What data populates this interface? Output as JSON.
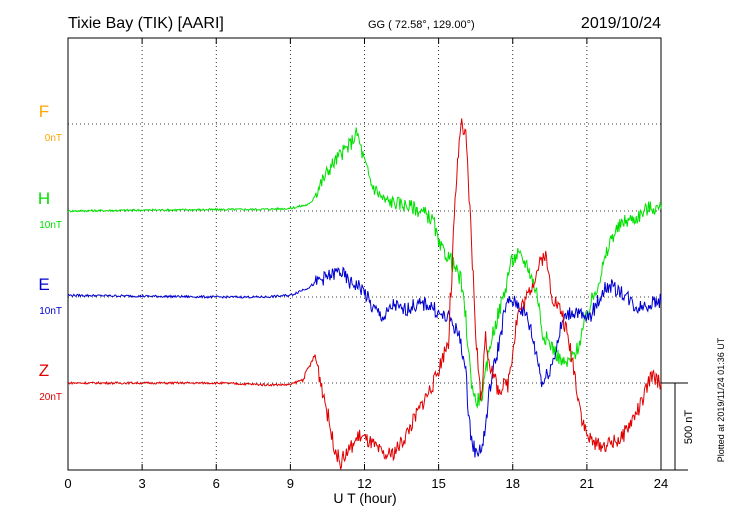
{
  "header": {
    "station": "Tixie Bay (TIK)  [AARI]",
    "coords": "GG ( 72.58°, 129.00°)",
    "date": "2019/10/24"
  },
  "side_note": "Plotted at 2019/11/24 01:36 UT",
  "colors": {
    "F": "#ffa500",
    "H": "#00e000",
    "E": "#0000d0",
    "Z": "#e00000",
    "axis": "#000000",
    "grid": "#000000"
  },
  "chart_data": {
    "type": "line",
    "xlabel": "U T (hour)",
    "xlim": [
      0,
      24
    ],
    "x_ticks": [
      0,
      3,
      6,
      9,
      12,
      15,
      18,
      21,
      24
    ],
    "y_units": "nT",
    "grid": true,
    "scale_bar": {
      "label": "500 nT",
      "value_nT": 500
    },
    "series": [
      {
        "name": "F",
        "scale_label": "0nT",
        "color": "#ffa500",
        "x": [],
        "y": []
      },
      {
        "name": "H",
        "scale_label": "10nT",
        "color": "#00e000",
        "x": [
          0,
          3,
          6,
          8,
          9,
          9.8,
          10.2,
          10.6,
          11,
          11.4,
          11.7,
          12,
          12.3,
          12.8,
          13.2,
          13.5,
          14,
          14.5,
          14.8,
          15,
          15.5,
          15.9,
          16.1,
          16.3,
          16.5,
          16.8,
          17.1,
          17.4,
          17.7,
          17.9,
          18.2,
          18.6,
          19,
          19.2,
          19.6,
          20,
          20.2,
          20.6,
          20.9,
          21.2,
          21.7,
          22,
          22.5,
          23,
          23.5,
          24
        ],
        "y": [
          0,
          5,
          8,
          10,
          15,
          40,
          150,
          250,
          320,
          380,
          450,
          280,
          150,
          60,
          50,
          40,
          20,
          -20,
          -60,
          -200,
          -280,
          -400,
          -620,
          -950,
          -1100,
          -1050,
          -750,
          -600,
          -450,
          -300,
          -250,
          -310,
          -480,
          -700,
          -780,
          -870,
          -880,
          -800,
          -650,
          -520,
          -300,
          -150,
          -60,
          -40,
          20,
          15
        ]
      },
      {
        "name": "E",
        "scale_label": "10nT",
        "color": "#0000d0",
        "x": [
          0,
          3,
          6,
          8,
          9,
          9.8,
          10.2,
          10.6,
          11,
          11.4,
          11.7,
          12,
          12.3,
          12.8,
          13.2,
          13.5,
          14,
          14.5,
          14.8,
          15,
          15.5,
          15.9,
          16.1,
          16.3,
          16.5,
          16.8,
          17.1,
          17.4,
          17.7,
          17.9,
          18.2,
          18.6,
          19,
          19.2,
          19.6,
          20,
          20.2,
          20.6,
          20.9,
          21.2,
          21.7,
          22,
          22.5,
          23,
          23.5,
          24
        ],
        "y": [
          10,
          5,
          0,
          0,
          10,
          60,
          100,
          120,
          150,
          80,
          70,
          30,
          -60,
          -120,
          -40,
          -80,
          -50,
          -40,
          -60,
          -100,
          -130,
          -250,
          -450,
          -800,
          -900,
          -850,
          -500,
          -300,
          -60,
          -20,
          -40,
          -120,
          -350,
          -500,
          -380,
          -150,
          -100,
          -80,
          -130,
          -100,
          50,
          60,
          20,
          -60,
          -40,
          -20
        ]
      },
      {
        "name": "Z",
        "scale_label": "20nT",
        "color": "#e00000",
        "x": [
          0,
          3,
          6,
          8,
          9,
          9.5,
          10,
          10.4,
          10.7,
          11,
          11.4,
          11.8,
          12.3,
          12.8,
          13.2,
          13.6,
          14,
          14.4,
          14.8,
          15,
          15.4,
          15.7,
          15.9,
          16.1,
          16.3,
          16.5,
          16.7,
          16.9,
          17.1,
          17.4,
          17.8,
          18.2,
          18.6,
          19,
          19.3,
          19.6,
          20,
          20.4,
          20.8,
          21,
          21.3,
          21.7,
          22,
          22.4,
          22.8,
          23.2,
          23.6,
          24
        ],
        "y": [
          0,
          0,
          0,
          -10,
          -10,
          20,
          160,
          -100,
          -320,
          -460,
          -380,
          -300,
          -350,
          -420,
          -400,
          -320,
          -210,
          -100,
          0,
          80,
          250,
          1100,
          1500,
          1400,
          900,
          300,
          -100,
          250,
          100,
          -40,
          0,
          400,
          500,
          650,
          750,
          500,
          400,
          150,
          -200,
          -300,
          -350,
          -360,
          -340,
          -320,
          -220,
          -120,
          40,
          0
        ]
      }
    ]
  }
}
